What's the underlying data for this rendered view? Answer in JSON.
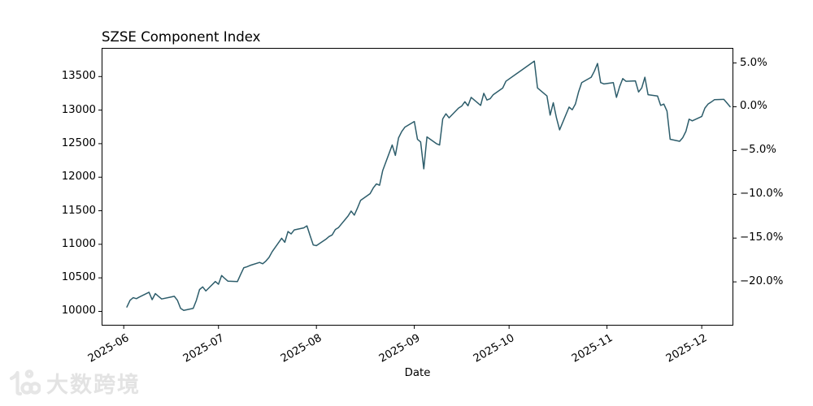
{
  "chart_data": {
    "type": "line",
    "title": "SZSE Component Index",
    "xlabel": "Date",
    "grid": false,
    "legend": false,
    "line_color": "#2d5d6b",
    "line_width": 1.5,
    "ylim": [
      9788,
      13927
    ],
    "xlim": [
      "2025-05-25",
      "2025-12-11"
    ],
    "y_ticks_left": [
      13500,
      13000,
      12500,
      12000,
      11500,
      11000,
      10500,
      10000
    ],
    "y_ticks_right": [
      {
        "pct": 5.0,
        "label": "5.0%"
      },
      {
        "pct": 0.0,
        "label": "0.0%"
      },
      {
        "pct": -5.0,
        "label": "−5.0%"
      },
      {
        "pct": -10.0,
        "label": "−10.0%"
      },
      {
        "pct": -15.0,
        "label": "−15.0%"
      },
      {
        "pct": -20.0,
        "label": "−20.0%"
      }
    ],
    "right_axis_reference": "last_value",
    "x_ticks": [
      {
        "date": "2025-06-01",
        "label": "2025-06"
      },
      {
        "date": "2025-07-01",
        "label": "2025-07"
      },
      {
        "date": "2025-08-01",
        "label": "2025-08"
      },
      {
        "date": "2025-09-01",
        "label": "2025-09"
      },
      {
        "date": "2025-10-01",
        "label": "2025-10"
      },
      {
        "date": "2025-11-01",
        "label": "2025-11"
      },
      {
        "date": "2025-12-01",
        "label": "2025-12"
      }
    ],
    "series": [
      {
        "name": "SZSE Component Index",
        "dates": [
          "2025-06-02",
          "2025-06-03",
          "2025-06-04",
          "2025-06-05",
          "2025-06-06",
          "2025-06-09",
          "2025-06-10",
          "2025-06-11",
          "2025-06-12",
          "2025-06-13",
          "2025-06-16",
          "2025-06-17",
          "2025-06-18",
          "2025-06-19",
          "2025-06-20",
          "2025-06-23",
          "2025-06-24",
          "2025-06-25",
          "2025-06-26",
          "2025-06-27",
          "2025-06-30",
          "2025-07-01",
          "2025-07-02",
          "2025-07-03",
          "2025-07-04",
          "2025-07-07",
          "2025-07-08",
          "2025-07-09",
          "2025-07-10",
          "2025-07-11",
          "2025-07-14",
          "2025-07-15",
          "2025-07-16",
          "2025-07-17",
          "2025-07-18",
          "2025-07-21",
          "2025-07-22",
          "2025-07-23",
          "2025-07-24",
          "2025-07-25",
          "2025-07-28",
          "2025-07-29",
          "2025-07-30",
          "2025-07-31",
          "2025-08-01",
          "2025-08-04",
          "2025-08-05",
          "2025-08-06",
          "2025-08-07",
          "2025-08-08",
          "2025-08-11",
          "2025-08-12",
          "2025-08-13",
          "2025-08-14",
          "2025-08-15",
          "2025-08-18",
          "2025-08-19",
          "2025-08-20",
          "2025-08-21",
          "2025-08-22",
          "2025-08-25",
          "2025-08-26",
          "2025-08-27",
          "2025-08-28",
          "2025-08-29",
          "2025-09-01",
          "2025-09-02",
          "2025-09-03",
          "2025-09-04",
          "2025-09-05",
          "2025-09-08",
          "2025-09-09",
          "2025-09-10",
          "2025-09-11",
          "2025-09-12",
          "2025-09-15",
          "2025-09-16",
          "2025-09-17",
          "2025-09-18",
          "2025-09-19",
          "2025-09-22",
          "2025-09-23",
          "2025-09-24",
          "2025-09-25",
          "2025-09-26",
          "2025-09-29",
          "2025-09-30",
          "2025-10-09",
          "2025-10-10",
          "2025-10-13",
          "2025-10-14",
          "2025-10-15",
          "2025-10-16",
          "2025-10-17",
          "2025-10-20",
          "2025-10-21",
          "2025-10-22",
          "2025-10-23",
          "2025-10-24",
          "2025-10-27",
          "2025-10-28",
          "2025-10-29",
          "2025-10-30",
          "2025-10-31",
          "2025-11-03",
          "2025-11-04",
          "2025-11-05",
          "2025-11-06",
          "2025-11-07",
          "2025-11-10",
          "2025-11-11",
          "2025-11-12",
          "2025-11-13",
          "2025-11-14",
          "2025-11-17",
          "2025-11-18",
          "2025-11-19",
          "2025-11-20",
          "2025-11-21",
          "2025-11-24",
          "2025-11-25",
          "2025-11-26",
          "2025-11-27",
          "2025-11-28",
          "2025-12-01",
          "2025-12-02",
          "2025-12-03",
          "2025-12-04",
          "2025-12-05",
          "2025-12-08",
          "2025-12-09",
          "2025-12-10"
        ],
        "values": [
          10065,
          10165,
          10205,
          10190,
          10215,
          10285,
          10175,
          10265,
          10225,
          10185,
          10215,
          10225,
          10165,
          10045,
          10015,
          10045,
          10165,
          10325,
          10365,
          10305,
          10445,
          10405,
          10535,
          10490,
          10450,
          10445,
          10550,
          10650,
          10665,
          10685,
          10730,
          10710,
          10750,
          10805,
          10890,
          11090,
          11030,
          11190,
          11155,
          11215,
          11245,
          11275,
          11130,
          10990,
          10980,
          11075,
          11115,
          11140,
          11220,
          11250,
          11420,
          11495,
          11435,
          11540,
          11655,
          11755,
          11840,
          11900,
          11880,
          12100,
          12480,
          12325,
          12585,
          12680,
          12745,
          12830,
          12565,
          12525,
          12125,
          12600,
          12500,
          12480,
          12870,
          12945,
          12885,
          13030,
          13060,
          13125,
          13065,
          13190,
          13070,
          13250,
          13150,
          13170,
          13230,
          13330,
          13430,
          13730,
          13330,
          13210,
          12925,
          13110,
          12885,
          12705,
          13045,
          13005,
          13090,
          13270,
          13410,
          13490,
          13580,
          13695,
          13410,
          13390,
          13410,
          13190,
          13350,
          13470,
          13430,
          13435,
          13270,
          13330,
          13490,
          13230,
          13210,
          13070,
          13090,
          12985,
          12565,
          12535,
          12590,
          12685,
          12865,
          12840,
          12905,
          13030,
          13090,
          13120,
          13155,
          13160,
          13105,
          13050
        ]
      }
    ]
  },
  "watermark": {
    "text": "大数跨境"
  }
}
